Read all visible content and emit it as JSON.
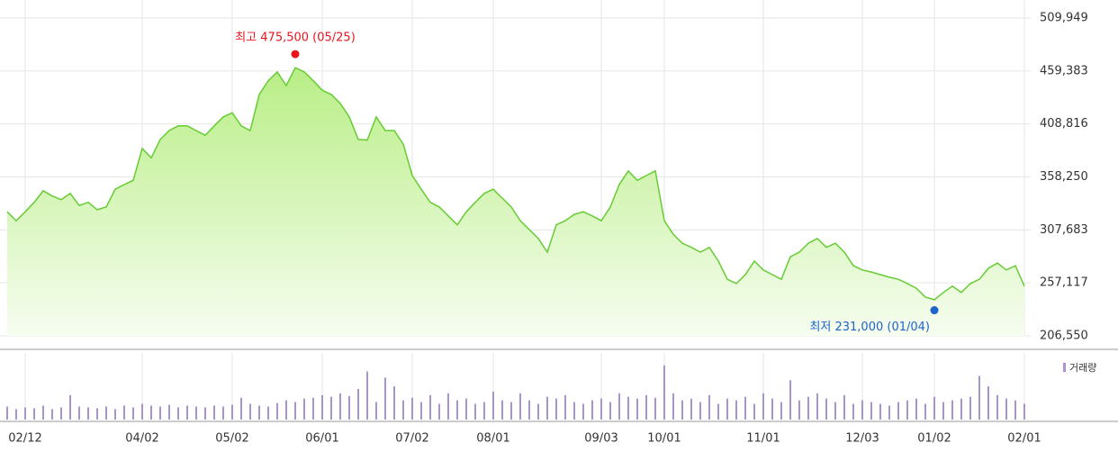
{
  "chart_data": {
    "type": "stock-area",
    "categories": [
      null,
      null,
      "02/12",
      null,
      null,
      null,
      null,
      null,
      null,
      null,
      null,
      null,
      null,
      null,
      null,
      "04/02",
      null,
      null,
      null,
      null,
      null,
      null,
      null,
      null,
      null,
      "05/02",
      null,
      null,
      null,
      null,
      null,
      null,
      null,
      null,
      null,
      "06/01",
      null,
      null,
      null,
      null,
      null,
      null,
      null,
      null,
      null,
      "07/02",
      null,
      null,
      null,
      null,
      null,
      null,
      null,
      null,
      "08/01",
      null,
      null,
      null,
      null,
      null,
      null,
      null,
      null,
      null,
      null,
      null,
      "09/03",
      null,
      null,
      null,
      null,
      null,
      null,
      "10/01",
      null,
      null,
      null,
      null,
      null,
      null,
      null,
      null,
      null,
      null,
      "11/01",
      null,
      null,
      null,
      null,
      null,
      null,
      null,
      null,
      null,
      null,
      "12/03",
      null,
      null,
      null,
      null,
      null,
      null,
      null,
      "01/02",
      null,
      null,
      null,
      null,
      null,
      null,
      null,
      null,
      null,
      "02/01"
    ],
    "series": [
      {
        "color": "#66cc33",
        "values": [
          325000,
          316500,
          325000,
          334000,
          345000,
          340000,
          336500,
          342500,
          331000,
          334000,
          327000,
          329500,
          346500,
          351000,
          355000,
          385500,
          376500,
          394000,
          402500,
          407000,
          407000,
          402500,
          398000,
          407000,
          415500,
          419500,
          407000,
          402500,
          437000,
          450000,
          458500,
          445500,
          462500,
          458500,
          450000,
          441000,
          437000,
          428500,
          415500,
          394000,
          393500,
          415500,
          402500,
          402500,
          389500,
          359500,
          346500,
          334000,
          329500,
          321000,
          312500,
          325000,
          334000,
          342500,
          346500,
          338000,
          329500,
          316500,
          308000,
          299500,
          286500,
          312500,
          316500,
          322500,
          325000,
          321000,
          316500,
          329500,
          351000,
          364000,
          355000,
          359500,
          364000,
          316500,
          303500,
          295000,
          291000,
          286500,
          291000,
          278000,
          260500,
          256500,
          265000,
          278000,
          269500,
          265000,
          260500,
          282000,
          286500,
          295000,
          299500,
          291000,
          295000,
          286500,
          273500,
          269500,
          267500,
          265000,
          262500,
          260500,
          256500,
          252000,
          243500,
          241000,
          248000,
          254000,
          248000,
          256500,
          260500,
          271000,
          276000,
          269500,
          273500,
          254000
        ]
      },
      {
        "name": "거래량",
        "color": "#a993d1",
        "values": [
          15,
          12,
          14,
          13,
          16,
          12,
          14,
          28,
          15,
          14,
          13,
          15,
          12,
          16,
          14,
          18,
          16,
          15,
          17,
          14,
          16,
          15,
          14,
          16,
          15,
          17,
          25,
          18,
          16,
          15,
          19,
          22,
          20,
          24,
          25,
          28,
          26,
          30,
          27,
          35,
          55,
          20,
          48,
          38,
          22,
          25,
          20,
          28,
          18,
          30,
          22,
          24,
          18,
          20,
          32,
          22,
          20,
          30,
          22,
          18,
          26,
          24,
          28,
          20,
          18,
          22,
          24,
          20,
          30,
          26,
          24,
          28,
          25,
          62,
          30,
          22,
          24,
          20,
          28,
          18,
          24,
          22,
          26,
          18,
          30,
          24,
          20,
          45,
          22,
          26,
          30,
          24,
          20,
          28,
          18,
          22,
          20,
          18,
          16,
          20,
          22,
          24,
          18,
          26,
          20,
          22,
          24,
          26,
          50,
          38,
          28,
          24,
          22,
          18
        ]
      }
    ],
    "ylim": [
      206550,
      509949
    ],
    "yticks": [
      {
        "value": 206550,
        "label": "206,550"
      },
      {
        "value": 257117,
        "label": "257,117"
      },
      {
        "value": 307683,
        "label": "307,683"
      },
      {
        "value": 358250,
        "label": "358,250"
      },
      {
        "value": 408816,
        "label": "408,816"
      },
      {
        "value": 459383,
        "label": "459,383"
      },
      {
        "value": 509949,
        "label": "509,949"
      }
    ],
    "volume_lim": [
      0,
      70
    ],
    "grid": true,
    "annotations": [
      {
        "label": "최고 475,500 (05/25)",
        "value": 475500,
        "color": "#e8141e"
      },
      {
        "label": "최저 231,000 (01/04)",
        "value": 231000,
        "color": "#1e64c8"
      }
    ]
  }
}
